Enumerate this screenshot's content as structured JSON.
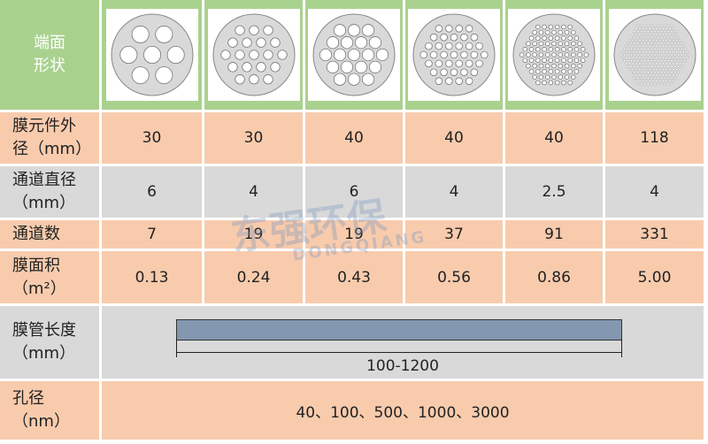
{
  "header": {
    "label": [
      "端面",
      "形状"
    ]
  },
  "rows": [
    {
      "label": [
        "膜元件外",
        "径（mm）"
      ],
      "values": [
        "30",
        "30",
        "40",
        "40",
        "40",
        "118"
      ]
    },
    {
      "label": [
        "通道直径",
        "（mm）"
      ],
      "values": [
        "6",
        "4",
        "6",
        "4",
        "2.5",
        "4"
      ]
    },
    {
      "label": [
        "通道数"
      ],
      "values": [
        "7",
        "19",
        "19",
        "37",
        "91",
        "331"
      ]
    },
    {
      "label": [
        "膜面积",
        "（m²）"
      ],
      "values": [
        "0.13",
        "0.24",
        "0.43",
        "0.56",
        "0.86",
        "5.00"
      ]
    }
  ],
  "length": {
    "label": [
      "膜管长度",
      "（mm）"
    ],
    "value": "100-1200"
  },
  "pore": {
    "label": [
      "孔径",
      "（nm）"
    ],
    "value": "40、100、500、1000、3000"
  },
  "watermark": {
    "cn": "东强环保",
    "en": "DONGQIANG"
  }
}
